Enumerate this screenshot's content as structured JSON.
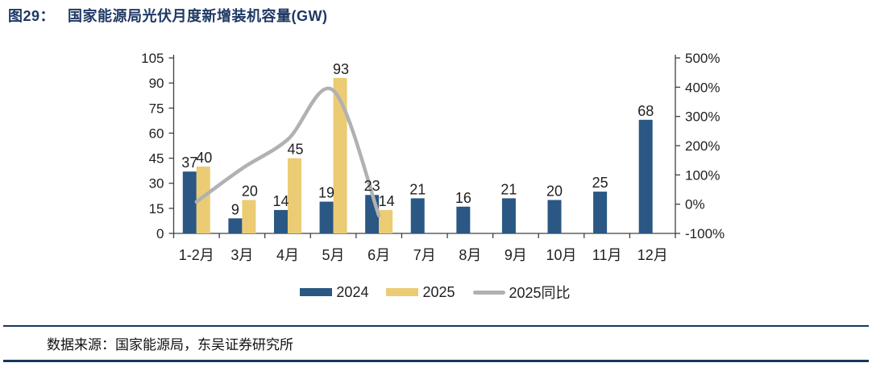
{
  "figure": {
    "tag": "图29：",
    "title": "国家能源局光伏月度新增装机容量(GW)"
  },
  "source": {
    "text": "数据来源：国家能源局，东吴证券研究所"
  },
  "colors": {
    "bar2024": "#2A5783",
    "bar2025": "#EBCC75",
    "yoy_line": "#B1B1B1",
    "title": "#1F3864",
    "axis": "#404040",
    "label": "#1f1f1f",
    "rule": "#17375E"
  },
  "chart_data": {
    "type": "bar+line",
    "title": "国家能源局光伏月度新增装机容量(GW)",
    "categories": [
      "1-2月",
      "3月",
      "4月",
      "5月",
      "6月",
      "7月",
      "8月",
      "9月",
      "10月",
      "11月",
      "12月"
    ],
    "series": [
      {
        "name": "2024",
        "type": "bar",
        "values": [
          37,
          9,
          14,
          19,
          23,
          21,
          16,
          21,
          20,
          25,
          68
        ]
      },
      {
        "name": "2025",
        "type": "bar",
        "values": [
          40,
          20,
          45,
          93,
          14,
          null,
          null,
          null,
          null,
          null,
          null
        ]
      },
      {
        "name": "2025同比",
        "type": "line",
        "axis": "right",
        "values_pct": [
          8,
          122,
          221,
          389,
          -39,
          null,
          null,
          null,
          null,
          null,
          null
        ]
      }
    ],
    "left_axis": {
      "min": 0,
      "max": 105,
      "ticks": [
        105,
        90,
        75,
        60,
        45,
        30,
        15,
        0
      ]
    },
    "right_axis": {
      "min": -100,
      "max": 500,
      "ticks": [
        500,
        400,
        300,
        200,
        100,
        0,
        -100
      ],
      "suffix": "%"
    },
    "grid": false,
    "legend_position": "bottom"
  }
}
